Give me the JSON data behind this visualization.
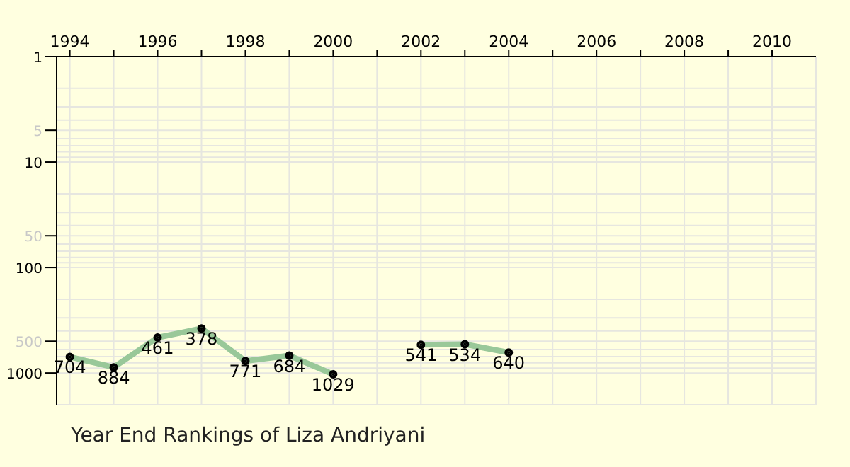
{
  "chart_data": {
    "type": "line",
    "title": "Year End Rankings of  Liza Andriyani",
    "x": [
      1994,
      1995,
      1996,
      1997,
      1998,
      1999,
      2000,
      2001,
      2002,
      2003,
      2004
    ],
    "series": [
      {
        "color": "#99c899",
        "values": [
          704,
          884,
          461,
          378,
          771,
          684,
          1029,
          null,
          541,
          534,
          640
        ]
      }
    ],
    "data_labels": true,
    "marker": "circle",
    "log": "y",
    "grid": true,
    "xlim": [
      1993.7,
      2011
    ],
    "xticks": [
      1994,
      {
        "value": 1995,
        "label": null
      },
      1996,
      {
        "value": 1997,
        "label": null
      },
      1998,
      {
        "value": 1999,
        "label": null
      },
      2000,
      {
        "value": 2001,
        "label": null
      },
      2002,
      {
        "value": 2003,
        "label": null
      },
      2004,
      {
        "value": 2005,
        "label": null
      },
      2006,
      {
        "value": 2007,
        "label": null
      },
      2008,
      {
        "value": 2009,
        "label": null
      },
      2010
    ],
    "ylim": [
      2000,
      1
    ],
    "yticks": [
      1,
      {
        "value": 2,
        "label": null
      },
      {
        "value": 3,
        "label": null
      },
      {
        "value": 4,
        "label": null
      },
      5,
      {
        "value": 6,
        "label": null
      },
      {
        "value": 7,
        "label": null
      },
      {
        "value": 8,
        "label": null
      },
      {
        "value": 9,
        "label": null
      },
      10,
      {
        "value": 20,
        "label": null
      },
      {
        "value": 30,
        "label": null
      },
      {
        "value": 40,
        "label": null
      },
      50,
      {
        "value": 60,
        "label": null
      },
      {
        "value": 70,
        "label": null
      },
      {
        "value": 80,
        "label": null
      },
      {
        "value": 90,
        "label": null
      },
      100,
      {
        "value": 200,
        "label": null
      },
      {
        "value": 300,
        "label": null
      },
      {
        "value": 400,
        "label": null
      },
      500,
      {
        "value": 600,
        "label": null
      },
      {
        "value": 700,
        "label": null
      },
      {
        "value": 800,
        "label": null
      },
      {
        "value": 900,
        "label": null
      },
      1000
    ]
  }
}
